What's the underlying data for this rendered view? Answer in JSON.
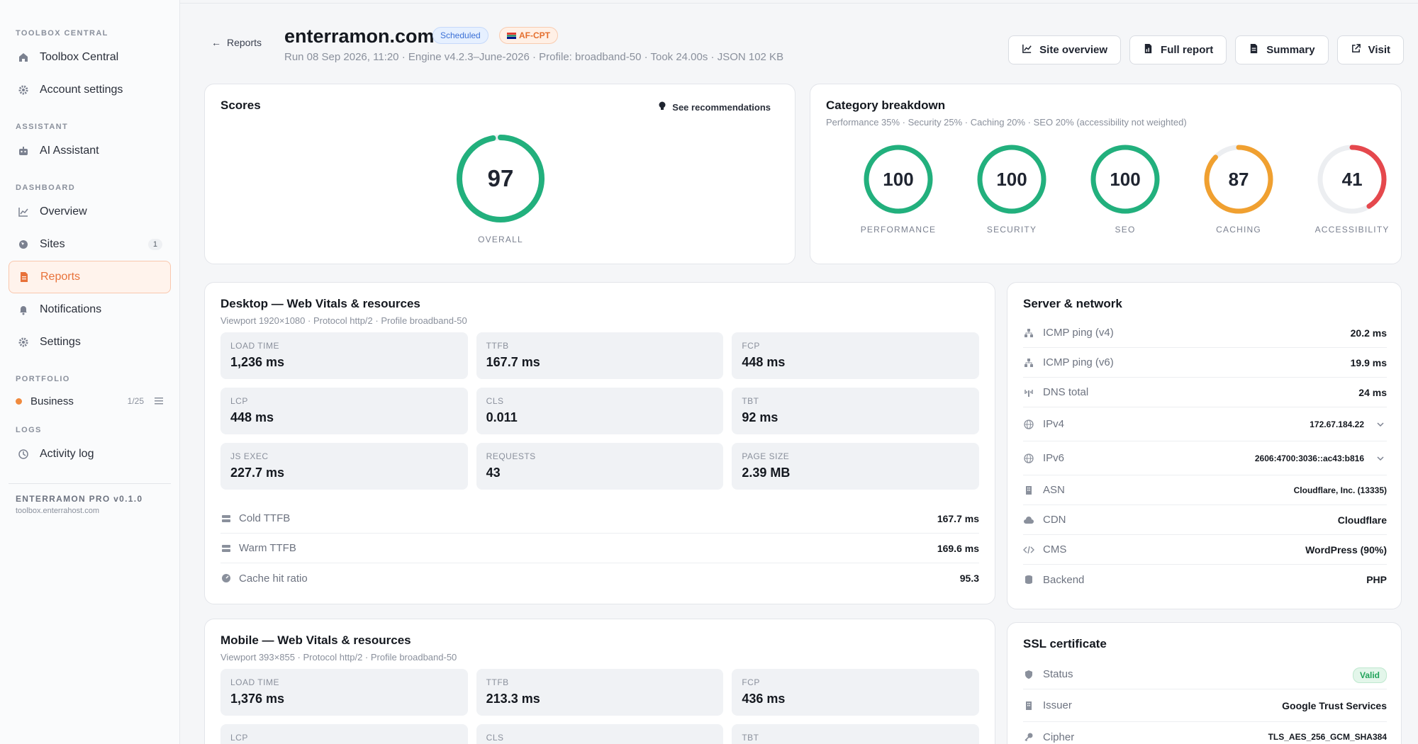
{
  "sidebar": {
    "sections": {
      "toolbox": "TOOLBOX CENTRAL",
      "assistant": "ASSISTANT",
      "dashboard": "DASHBOARD",
      "portfolio": "PORTFOLIO",
      "logs": "LOGS"
    },
    "items": {
      "toolbox_central": "Toolbox Central",
      "account_settings": "Account settings",
      "ai_assistant": "AI Assistant",
      "overview": "Overview",
      "sites": "Sites",
      "sites_count": "1",
      "reports": "Reports",
      "notifications": "Notifications",
      "settings": "Settings",
      "activity_log": "Activity log"
    },
    "portfolio": {
      "name": "Business",
      "meta": "1/25"
    },
    "footer": {
      "version": "ENTERRAMON PRO v0.1.0",
      "host": "toolbox.enterrahost.com"
    }
  },
  "header": {
    "back_label": "Reports",
    "title": "enterramon.com",
    "badge_scheduled": "Scheduled",
    "badge_region": "AF-CPT",
    "subline": "Run 08 Sep 2026, 11:20 · Engine v4.2.3–June-2026 · Profile: broadband-50 · Took 24.00s · JSON 102 KB",
    "buttons": {
      "site_overview": "Site overview",
      "full_report": "Full report",
      "summary": "Summary",
      "visit": "Visit"
    }
  },
  "scores": {
    "title": "Scores",
    "see_recommendations": "See recommendations",
    "overall_value": "97",
    "overall_label": "OVERALL",
    "overall_pct": 0.97
  },
  "category": {
    "title": "Category breakdown",
    "subtitle": "Performance 35% · Security 25% · Caching 20% · SEO 20% (accessibility not weighted)",
    "items": [
      {
        "value": "100",
        "label": "PERFORMANCE",
        "pct": 1.0,
        "color": "#22b07d"
      },
      {
        "value": "100",
        "label": "SECURITY",
        "pct": 1.0,
        "color": "#22b07d"
      },
      {
        "value": "100",
        "label": "SEO",
        "pct": 1.0,
        "color": "#22b07d"
      },
      {
        "value": "87",
        "label": "CACHING",
        "pct": 0.87,
        "color": "#f0a030"
      },
      {
        "value": "41",
        "label": "ACCESSIBILITY",
        "pct": 0.41,
        "color": "#e5484d"
      }
    ]
  },
  "desktop": {
    "title": "Desktop — Web Vitals & resources",
    "subtitle": "Viewport 1920×1080 · Protocol http/2 · Profile broadband-50",
    "tiles": [
      {
        "k": "LOAD TIME",
        "v": "1,236 ms"
      },
      {
        "k": "TTFB",
        "v": "167.7 ms"
      },
      {
        "k": "FCP",
        "v": "448 ms"
      },
      {
        "k": "LCP",
        "v": "448 ms"
      },
      {
        "k": "CLS",
        "v": "0.011"
      },
      {
        "k": "TBT",
        "v": "92 ms"
      },
      {
        "k": "JS EXEC",
        "v": "227.7 ms"
      },
      {
        "k": "REQUESTS",
        "v": "43"
      },
      {
        "k": "PAGE SIZE",
        "v": "2.39 MB"
      }
    ],
    "rows": [
      {
        "k": "Cold TTFB",
        "v": "167.7 ms"
      },
      {
        "k": "Warm TTFB",
        "v": "169.6 ms"
      },
      {
        "k": "Cache hit ratio",
        "v": "95.3"
      }
    ]
  },
  "mobile": {
    "title": "Mobile — Web Vitals & resources",
    "subtitle": "Viewport 393×855 · Protocol http/2 · Profile broadband-50",
    "tiles": [
      {
        "k": "LOAD TIME",
        "v": "1,376 ms"
      },
      {
        "k": "TTFB",
        "v": "213.3 ms"
      },
      {
        "k": "FCP",
        "v": "436 ms"
      },
      {
        "k": "LCP",
        "v": ""
      },
      {
        "k": "CLS",
        "v": ""
      },
      {
        "k": "TBT",
        "v": ""
      }
    ]
  },
  "server": {
    "title": "Server & network",
    "rows": [
      {
        "k": "ICMP ping (v4)",
        "v": "20.2 ms"
      },
      {
        "k": "ICMP ping (v6)",
        "v": "19.9 ms"
      },
      {
        "k": "DNS total",
        "v": "24 ms"
      },
      {
        "k": "IPv4",
        "v": "172.67.184.22"
      },
      {
        "k": "IPv6",
        "v": "2606:4700:3036::ac43:b816"
      },
      {
        "k": "ASN",
        "v": "Cloudflare, Inc. (13335)"
      },
      {
        "k": "CDN",
        "v": "Cloudflare"
      },
      {
        "k": "CMS",
        "v": "WordPress (90%)"
      },
      {
        "k": "Backend",
        "v": "PHP"
      }
    ]
  },
  "ssl": {
    "title": "SSL certificate",
    "status_label": "Status",
    "status_value": "Valid",
    "issuer_label": "Issuer",
    "issuer_value": "Google Trust Services",
    "cipher_label": "Cipher",
    "cipher_value": "TLS_AES_256_GCM_SHA384"
  }
}
